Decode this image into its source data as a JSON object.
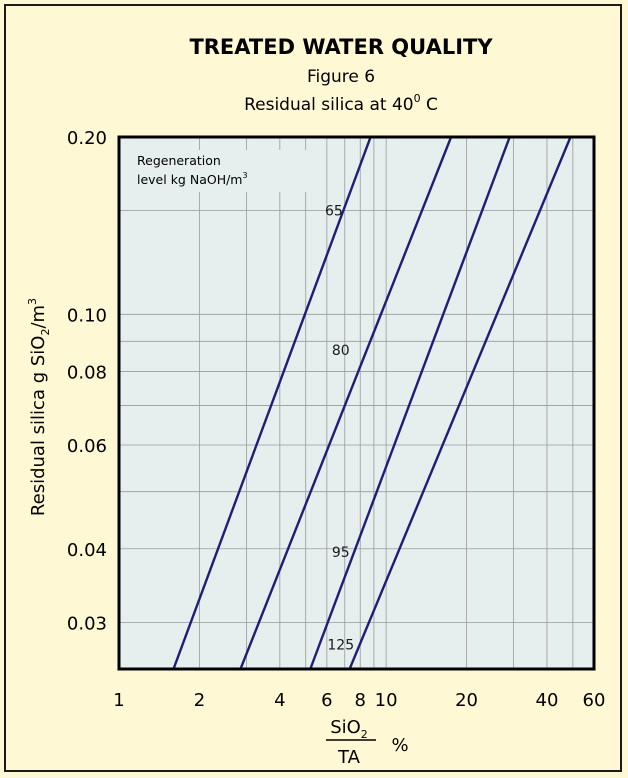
{
  "chart_data": {
    "type": "line",
    "title": "TREATED WATER QUALITY",
    "subtitle": "Figure 6",
    "subtitle2_text": "Residual silica at 40",
    "subtitle2_sup": "0",
    "subtitle2_unit": " C",
    "ylabel": {
      "main": "Residual silica g SiO",
      "sub": "2",
      "mid": "/m",
      "sup": "3"
    },
    "xlabel": {
      "numerator": "SiO",
      "numerator_sub": "2",
      "denominator": "TA",
      "unit": "%"
    },
    "note": {
      "line1": "Regeneration",
      "line2": "level kg NaOH/m",
      "sup": "3"
    },
    "x_scale": "log",
    "y_scale": "log",
    "xlim": [
      1,
      60
    ],
    "ylim": [
      0.025,
      0.2
    ],
    "x_ticks": [
      {
        "value": 1,
        "label": "1"
      },
      {
        "value": 2,
        "label": "2"
      },
      {
        "value": 4,
        "label": "4"
      },
      {
        "value": 6,
        "label": "6"
      },
      {
        "value": 8,
        "label": "8"
      },
      {
        "value": 10,
        "label": "10"
      },
      {
        "value": 20,
        "label": "20"
      },
      {
        "value": 40,
        "label": "40"
      },
      {
        "value": 60,
        "label": "60"
      }
    ],
    "x_grid": [
      2,
      3,
      4,
      5,
      6,
      7,
      8,
      9,
      10,
      20,
      30,
      40,
      50
    ],
    "y_ticks": [
      {
        "value": 0.2,
        "label": "0.20"
      },
      {
        "value": 0.1,
        "label": "0.10"
      },
      {
        "value": 0.08,
        "label": "0.08"
      },
      {
        "value": 0.06,
        "label": "0.06"
      },
      {
        "value": 0.04,
        "label": "0.04"
      },
      {
        "value": 0.03,
        "label": "0.03"
      }
    ],
    "y_grid": [
      0.03,
      0.04,
      0.05,
      0.06,
      0.07,
      0.08,
      0.09,
      0.1,
      0.15
    ],
    "grid": true,
    "series": [
      {
        "name": "65",
        "x": [
          1.6,
          8.75
        ],
        "y": [
          0.025,
          0.2
        ],
        "label_at": [
          6.6,
          0.15
        ]
      },
      {
        "name": "80",
        "x": [
          2.85,
          17.5
        ],
        "y": [
          0.025,
          0.2
        ],
        "label_at": [
          7.0,
          0.087
        ]
      },
      {
        "name": "95",
        "x": [
          5.2,
          29.0
        ],
        "y": [
          0.025,
          0.2
        ],
        "label_at": [
          7.0,
          0.0395
        ]
      },
      {
        "name": "125",
        "x": [
          7.3,
          49.0
        ],
        "y": [
          0.025,
          0.2
        ],
        "label_at": [
          7.0,
          0.0275
        ]
      }
    ],
    "colors": {
      "background": "#fff8d4",
      "plot_bg": "#e6eeee",
      "grid": "#9a9a9a",
      "line": "#1e1e78",
      "axis": "#000000"
    }
  }
}
